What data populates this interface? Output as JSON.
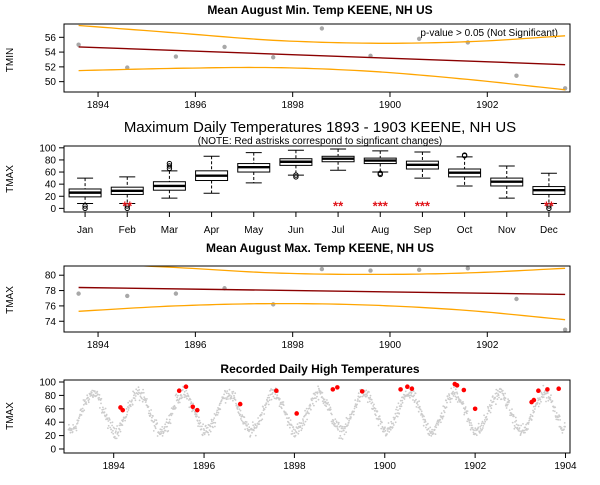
{
  "chart_data": [
    {
      "type": "scatter",
      "title": "Mean August Min. Temp KEENE, NH US",
      "ylabel": "TMIN",
      "annotation": "p-value > 0.05 (Not Significant)",
      "xlim": [
        1893.3,
        1903.7
      ],
      "ylim": [
        48.6,
        57.8
      ],
      "x_ticks": [
        1894,
        1896,
        1898,
        1900,
        1902
      ],
      "y_ticks": [
        50,
        52,
        54,
        56
      ],
      "points": [
        {
          "x": 1893.6,
          "y": 55.0
        },
        {
          "x": 1894.6,
          "y": 51.9
        },
        {
          "x": 1895.6,
          "y": 53.4
        },
        {
          "x": 1896.6,
          "y": 54.7
        },
        {
          "x": 1897.6,
          "y": 53.3
        },
        {
          "x": 1898.6,
          "y": 57.2
        },
        {
          "x": 1899.6,
          "y": 53.5
        },
        {
          "x": 1900.6,
          "y": 55.8
        },
        {
          "x": 1901.6,
          "y": 55.3
        },
        {
          "x": 1902.6,
          "y": 50.8
        },
        {
          "x": 1903.6,
          "y": 49.1
        }
      ],
      "trend": {
        "x": [
          1893.6,
          1903.6
        ],
        "y": [
          54.7,
          52.3
        ]
      },
      "ci_upper": {
        "x": [
          1893.6,
          1895.6,
          1897.6,
          1899.6,
          1901.6,
          1903.6
        ],
        "y": [
          57.6,
          56.6,
          55.6,
          55.2,
          55.4,
          56.2
        ]
      },
      "ci_lower": {
        "x": [
          1893.6,
          1895.6,
          1897.6,
          1899.6,
          1901.6,
          1903.6
        ],
        "y": [
          51.5,
          51.8,
          51.9,
          51.4,
          50.3,
          48.9
        ]
      }
    },
    {
      "type": "box",
      "title": "Maximum Daily Temperatures 1893 - 1903 KEENE, NH US",
      "subtitle": "(NOTE: Red astrisks correspond to signficant changes)",
      "ylabel": "TMAX",
      "ylim": [
        -6,
        103
      ],
      "y_ticks": [
        0,
        20,
        40,
        60,
        80,
        100
      ],
      "categories": [
        "Jan",
        "Feb",
        "Mar",
        "Apr",
        "May",
        "Jun",
        "Jul",
        "Aug",
        "Sep",
        "Oct",
        "Nov",
        "Dec"
      ],
      "boxes": [
        {
          "min": 8,
          "q1": 19,
          "median": 26,
          "q3": 32,
          "max": 50,
          "outliers": [
            0,
            4
          ],
          "sig": ""
        },
        {
          "min": 8,
          "q1": 23,
          "median": 29,
          "q3": 35,
          "max": 52,
          "outliers": [
            0,
            4
          ],
          "sig": "**"
        },
        {
          "min": 17,
          "q1": 30,
          "median": 37,
          "q3": 44,
          "max": 62,
          "outliers": [
            66,
            70,
            74
          ],
          "sig": ""
        },
        {
          "min": 25,
          "q1": 46,
          "median": 54,
          "q3": 62,
          "max": 86,
          "outliers": [],
          "sig": ""
        },
        {
          "min": 42,
          "q1": 60,
          "median": 68,
          "q3": 74,
          "max": 92,
          "outliers": [],
          "sig": ""
        },
        {
          "min": 55,
          "q1": 71,
          "median": 77,
          "q3": 82,
          "max": 96,
          "outliers": [
            52,
            55
          ],
          "sig": ""
        },
        {
          "min": 63,
          "q1": 77,
          "median": 82,
          "q3": 86,
          "max": 98,
          "outliers": [],
          "sig": "**"
        },
        {
          "min": 60,
          "q1": 74,
          "median": 79,
          "q3": 83,
          "max": 95,
          "outliers": [
            56,
            58
          ],
          "sig": "***"
        },
        {
          "min": 50,
          "q1": 65,
          "median": 72,
          "q3": 78,
          "max": 93,
          "outliers": [],
          "sig": "***"
        },
        {
          "min": 37,
          "q1": 52,
          "median": 59,
          "q3": 65,
          "max": 85,
          "outliers": [
            87,
            88
          ],
          "sig": ""
        },
        {
          "min": 17,
          "q1": 37,
          "median": 44,
          "q3": 50,
          "max": 70,
          "outliers": [],
          "sig": ""
        },
        {
          "min": 8,
          "q1": 23,
          "median": 30,
          "q3": 36,
          "max": 58,
          "outliers": [
            0,
            4
          ],
          "sig": "**"
        }
      ]
    },
    {
      "type": "scatter",
      "title": "Mean August Max. Temp KEENE, NH US",
      "ylabel": "TMAX",
      "xlim": [
        1893.3,
        1903.7
      ],
      "ylim": [
        72.6,
        81.2
      ],
      "x_ticks": [
        1894,
        1896,
        1898,
        1900,
        1902
      ],
      "y_ticks": [
        74,
        76,
        78,
        80
      ],
      "points": [
        {
          "x": 1893.6,
          "y": 77.6
        },
        {
          "x": 1894.6,
          "y": 77.3
        },
        {
          "x": 1895.6,
          "y": 77.6
        },
        {
          "x": 1896.6,
          "y": 78.3
        },
        {
          "x": 1897.6,
          "y": 76.2
        },
        {
          "x": 1898.6,
          "y": 80.8
        },
        {
          "x": 1899.6,
          "y": 80.6
        },
        {
          "x": 1900.6,
          "y": 80.7
        },
        {
          "x": 1901.6,
          "y": 80.9
        },
        {
          "x": 1902.6,
          "y": 76.9
        },
        {
          "x": 1903.6,
          "y": 72.9
        }
      ],
      "trend": {
        "x": [
          1893.6,
          1903.6
        ],
        "y": [
          78.4,
          77.5
        ]
      },
      "ci_upper": {
        "x": [
          1893.6,
          1895.6,
          1897.6,
          1899.6,
          1901.6,
          1903.6
        ],
        "y": [
          81.6,
          81.0,
          80.3,
          80.1,
          80.3,
          80.9
        ]
      },
      "ci_lower": {
        "x": [
          1893.6,
          1895.6,
          1897.6,
          1899.6,
          1901.6,
          1903.6
        ],
        "y": [
          75.3,
          76.0,
          76.3,
          76.1,
          75.4,
          74.2
        ]
      }
    },
    {
      "type": "scatter",
      "title": "Recorded Daily High Temperatures",
      "ylabel": "TMAX",
      "xlim": [
        1892.9,
        1904.1
      ],
      "ylim": [
        -6,
        103
      ],
      "x_ticks": [
        1894,
        1896,
        1898,
        1900,
        1902,
        1904
      ],
      "y_ticks": [
        0,
        20,
        40,
        60,
        80,
        100
      ],
      "x_range": [
        1893.0,
        1904.0
      ],
      "seasonal": {
        "mean_annual": 55,
        "amplitude": 28,
        "noise": 10
      },
      "highlight_color": "#ff0000",
      "base_color": "#cccccc",
      "highlights": [
        {
          "x": 1894.15,
          "y": 62
        },
        {
          "x": 1894.2,
          "y": 58
        },
        {
          "x": 1895.45,
          "y": 87
        },
        {
          "x": 1895.6,
          "y": 93
        },
        {
          "x": 1895.75,
          "y": 63
        },
        {
          "x": 1895.85,
          "y": 58
        },
        {
          "x": 1896.8,
          "y": 67
        },
        {
          "x": 1897.6,
          "y": 87
        },
        {
          "x": 1898.05,
          "y": 53
        },
        {
          "x": 1898.85,
          "y": 89
        },
        {
          "x": 1898.95,
          "y": 92
        },
        {
          "x": 1899.5,
          "y": 86
        },
        {
          "x": 1900.35,
          "y": 89
        },
        {
          "x": 1900.5,
          "y": 93
        },
        {
          "x": 1900.6,
          "y": 90
        },
        {
          "x": 1901.55,
          "y": 97
        },
        {
          "x": 1901.6,
          "y": 95
        },
        {
          "x": 1901.75,
          "y": 88
        },
        {
          "x": 1902.0,
          "y": 60
        },
        {
          "x": 1903.25,
          "y": 70
        },
        {
          "x": 1903.3,
          "y": 73
        },
        {
          "x": 1903.4,
          "y": 87
        },
        {
          "x": 1903.6,
          "y": 89
        },
        {
          "x": 1903.85,
          "y": 90
        }
      ]
    }
  ]
}
